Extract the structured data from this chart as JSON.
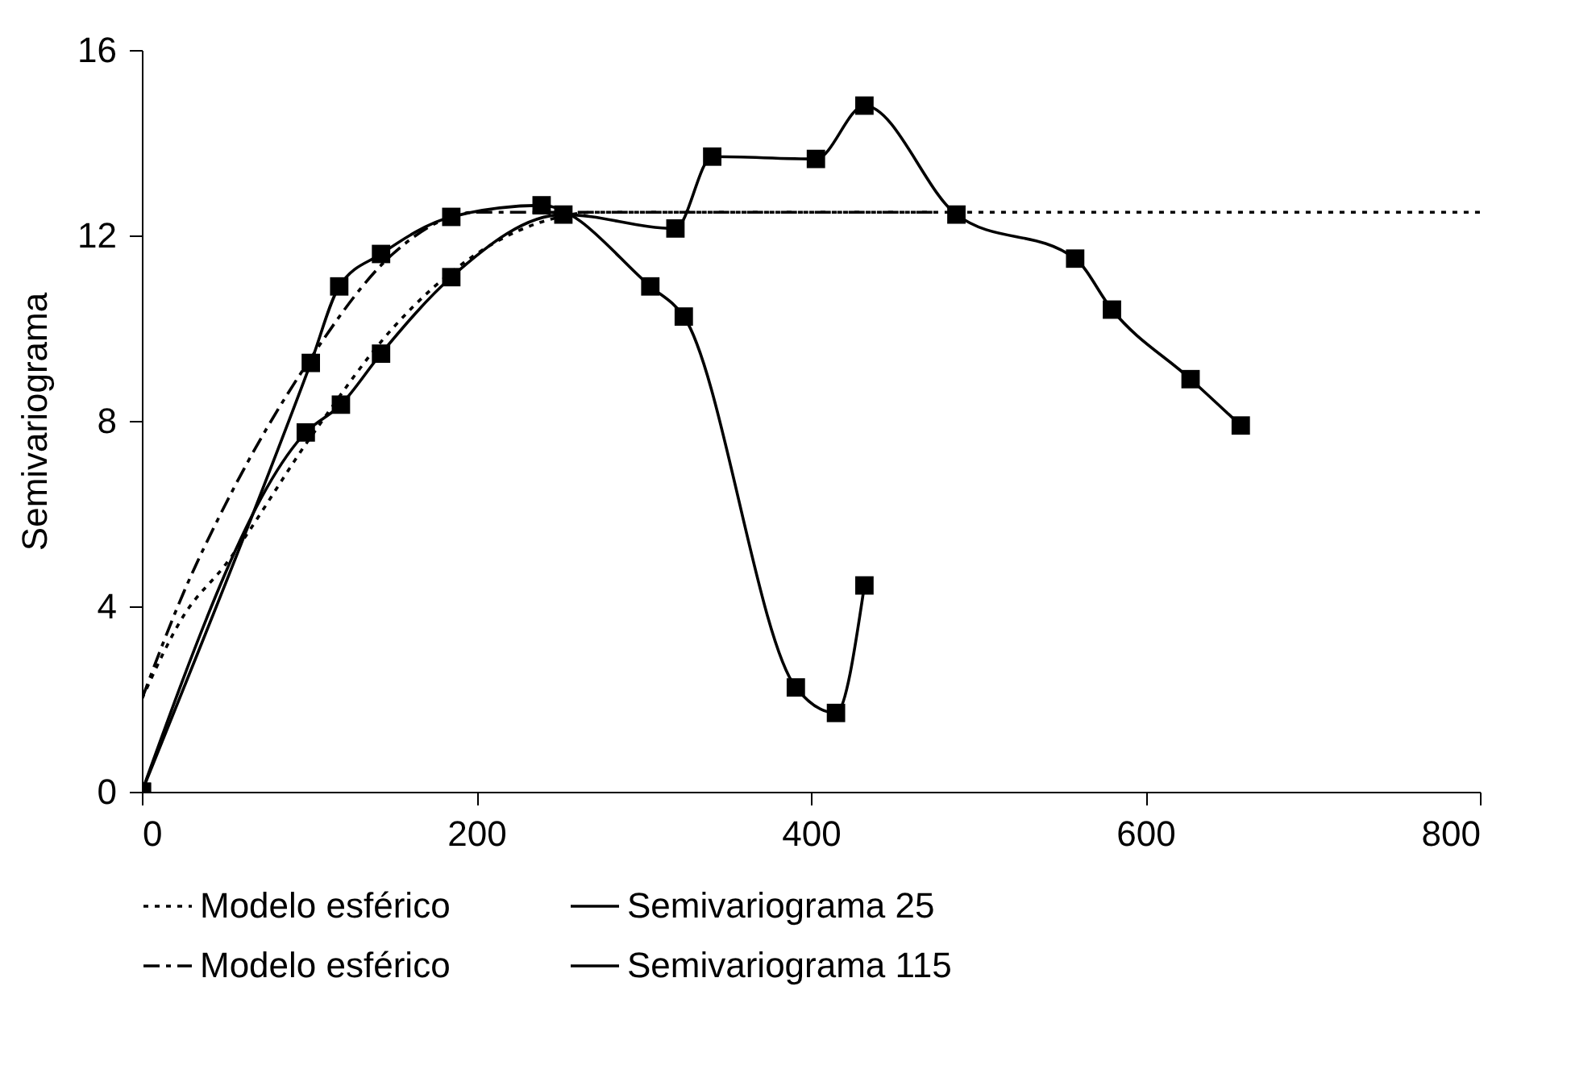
{
  "chart_data": {
    "type": "line",
    "ylabel": "Semivariograma",
    "xlim": [
      0,
      800
    ],
    "ylim": [
      0,
      16
    ],
    "xticks": [
      0,
      200,
      400,
      600,
      800
    ],
    "yticks": [
      0,
      4,
      8,
      12,
      16
    ],
    "grid": false,
    "legend": "bottom",
    "series": [
      {
        "name": "Modelo esférico",
        "color": "#000000",
        "line_style": "dotted",
        "marker": "none",
        "x": [
          0,
          25,
          50,
          100,
          150,
          200,
          250,
          270,
          800
        ],
        "values": [
          2,
          3.8,
          4.9,
          7.6,
          10,
          11.6,
          12.4,
          12.5,
          12.5
        ]
      },
      {
        "name": "Semivariograma 25",
        "color": "#000000",
        "line_style": "solid",
        "marker": "square",
        "x": [
          0,
          98,
          119,
          143,
          185,
          252,
          319,
          341,
          403,
          432,
          487,
          558,
          580,
          627,
          657
        ],
        "values": [
          0,
          7.75,
          8.35,
          9.45,
          11.1,
          12.45,
          12.15,
          13.7,
          13.65,
          14.8,
          12.45,
          11.5,
          10.4,
          8.9,
          7.9
        ]
      },
      {
        "name": "Modelo esférico",
        "color": "#000000",
        "line_style": "dashed",
        "marker": "none",
        "x": [
          0,
          25,
          50,
          100,
          150,
          200,
          476
        ],
        "values": [
          2,
          4.3,
          6.2,
          9.3,
          11.6,
          12.5,
          12.5
        ]
      },
      {
        "name": "Semivariograma 115",
        "color": "#000000",
        "line_style": "solid",
        "marker": "square",
        "x": [
          0,
          101,
          118,
          143,
          185,
          239,
          304,
          324,
          391,
          415,
          432
        ],
        "values": [
          0,
          9.25,
          10.9,
          11.6,
          12.4,
          12.65,
          10.9,
          10.25,
          2.25,
          1.7,
          4.45
        ]
      }
    ]
  }
}
